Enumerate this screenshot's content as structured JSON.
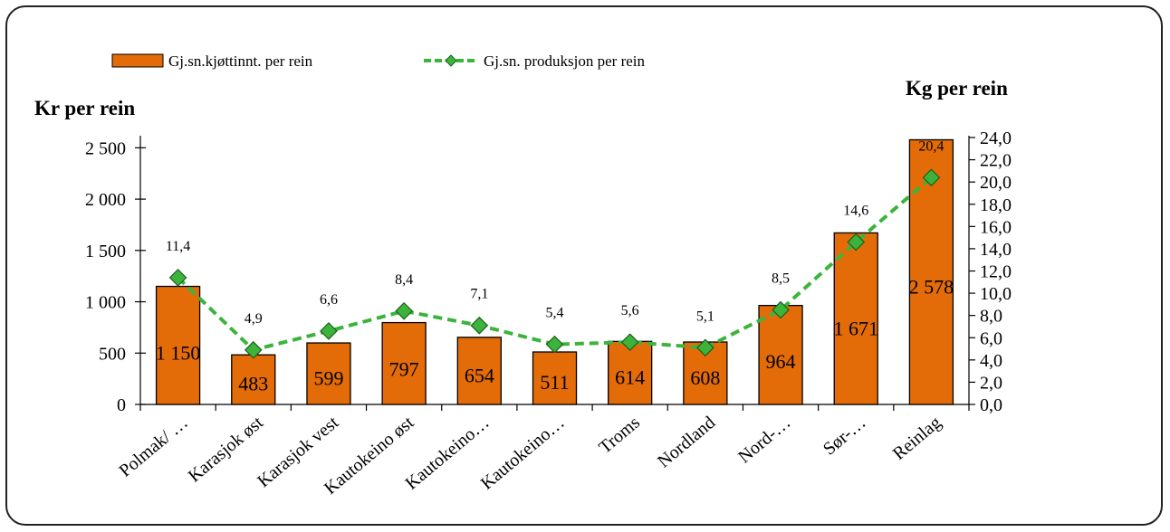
{
  "chart_data": {
    "type": "bar",
    "categories": [
      "Polmak/ …",
      "Karasjok øst",
      "Karasjok vest",
      "Kautokeino øst",
      "Kautokeino…",
      "Kautokeino…",
      "Troms",
      "Nordland",
      "Nord-…",
      "Sør-…",
      "Reinlag"
    ],
    "series": [
      {
        "name": "Gj.sn.kjøttinnt. per rein",
        "type": "bar",
        "axis": "left",
        "color": "#E36C09",
        "values": [
          1150,
          483,
          599,
          797,
          654,
          511,
          614,
          608,
          964,
          1671,
          2578
        ],
        "labels": [
          "1 150",
          "483",
          "599",
          "797",
          "654",
          "511",
          "614",
          "608",
          "964",
          "1 671",
          "2 578"
        ]
      },
      {
        "name": "Gj.sn. produksjon per rein",
        "type": "line",
        "axis": "right",
        "color": "#3CB43C",
        "line_style": "dashed",
        "marker": "diamond",
        "values": [
          11.4,
          4.9,
          6.6,
          8.4,
          7.1,
          5.4,
          5.6,
          5.1,
          8.5,
          14.6,
          20.4
        ],
        "labels": [
          "11,4",
          "4,9",
          "6,6",
          "8,4",
          "7,1",
          "5,4",
          "5,6",
          "5,1",
          "8,5",
          "14,6",
          "20,4"
        ]
      }
    ],
    "y_left": {
      "label": "Kr per rein",
      "ylim": [
        0,
        2600
      ],
      "ticks": [
        0,
        500,
        1000,
        1500,
        2000,
        2500
      ],
      "tick_labels": [
        "0",
        "500",
        "1 000",
        "1 500",
        "2 000",
        "2 500"
      ]
    },
    "y_right": {
      "label": "Kg per rein",
      "ylim": [
        0,
        24
      ],
      "ticks": [
        0,
        2,
        4,
        6,
        8,
        10,
        12,
        14,
        16,
        18,
        20,
        22,
        24
      ],
      "tick_labels": [
        "0,0",
        "2,0",
        "4,0",
        "6,0",
        "8,0",
        "10,0",
        "12,0",
        "14,0",
        "16,0",
        "18,0",
        "20,0",
        "22,0",
        "24,0"
      ]
    },
    "grid": false,
    "legend_position": "top-left"
  }
}
